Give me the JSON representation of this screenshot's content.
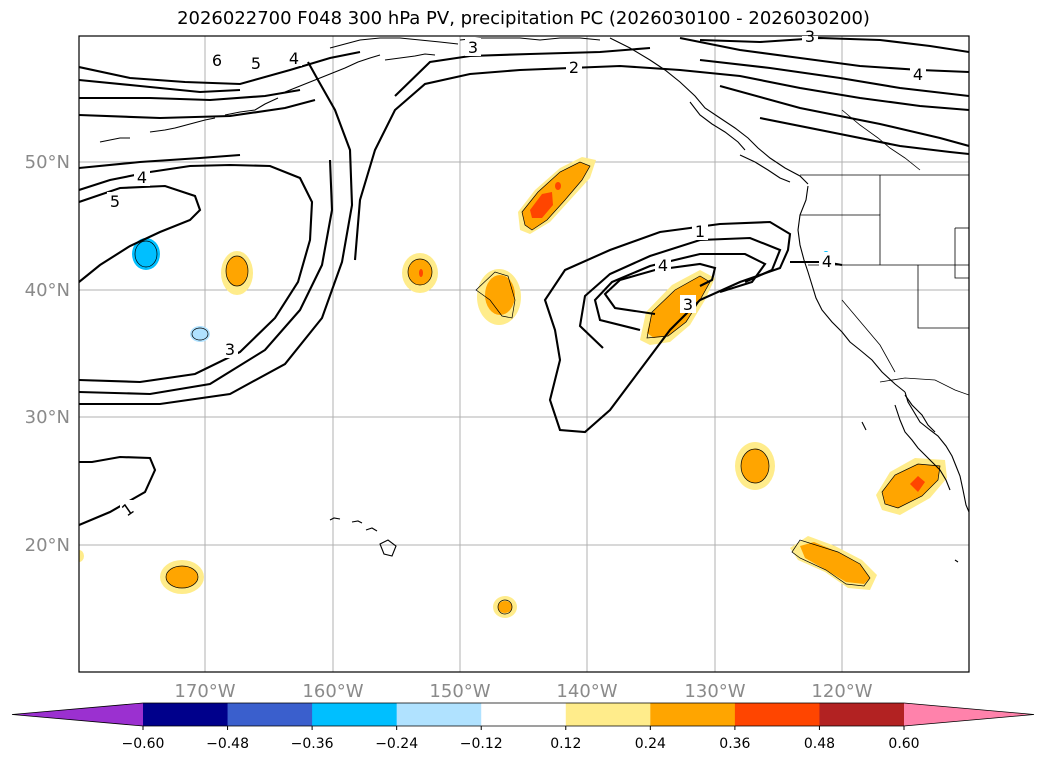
{
  "title": "2026022700 F048 300 hPa PV, precipitation PC (2026030100 - 2026030200)",
  "latitude_labels": [
    "50°N",
    "40°N",
    "30°N",
    "20°N"
  ],
  "longitude_labels": [
    "170°W",
    "160°W",
    "150°W",
    "140°W",
    "130°W",
    "120°W"
  ],
  "pv_contour_labels": [
    "6",
    "5",
    "4",
    "3",
    "2",
    "3",
    "4",
    "4",
    "5",
    "3",
    "1",
    "4",
    "3",
    "1",
    "4"
  ],
  "colorbar": {
    "colors": [
      "#9b30d0",
      "#00008b",
      "#3a5fcd",
      "#00bfff",
      "#b0e2ff",
      "#ffffff",
      "#ffec8b",
      "#ffa500",
      "#ff4500",
      "#b22222",
      "#ff82ab"
    ],
    "tick_labels": [
      "−0.60",
      "−0.48",
      "−0.36",
      "−0.24",
      "−0.12",
      "0.12",
      "0.24",
      "0.36",
      "0.48",
      "0.60"
    ]
  },
  "colors": {
    "grid": "#b0b0b0",
    "tick_label": "#8a8a8a",
    "contour": "#000000"
  }
}
